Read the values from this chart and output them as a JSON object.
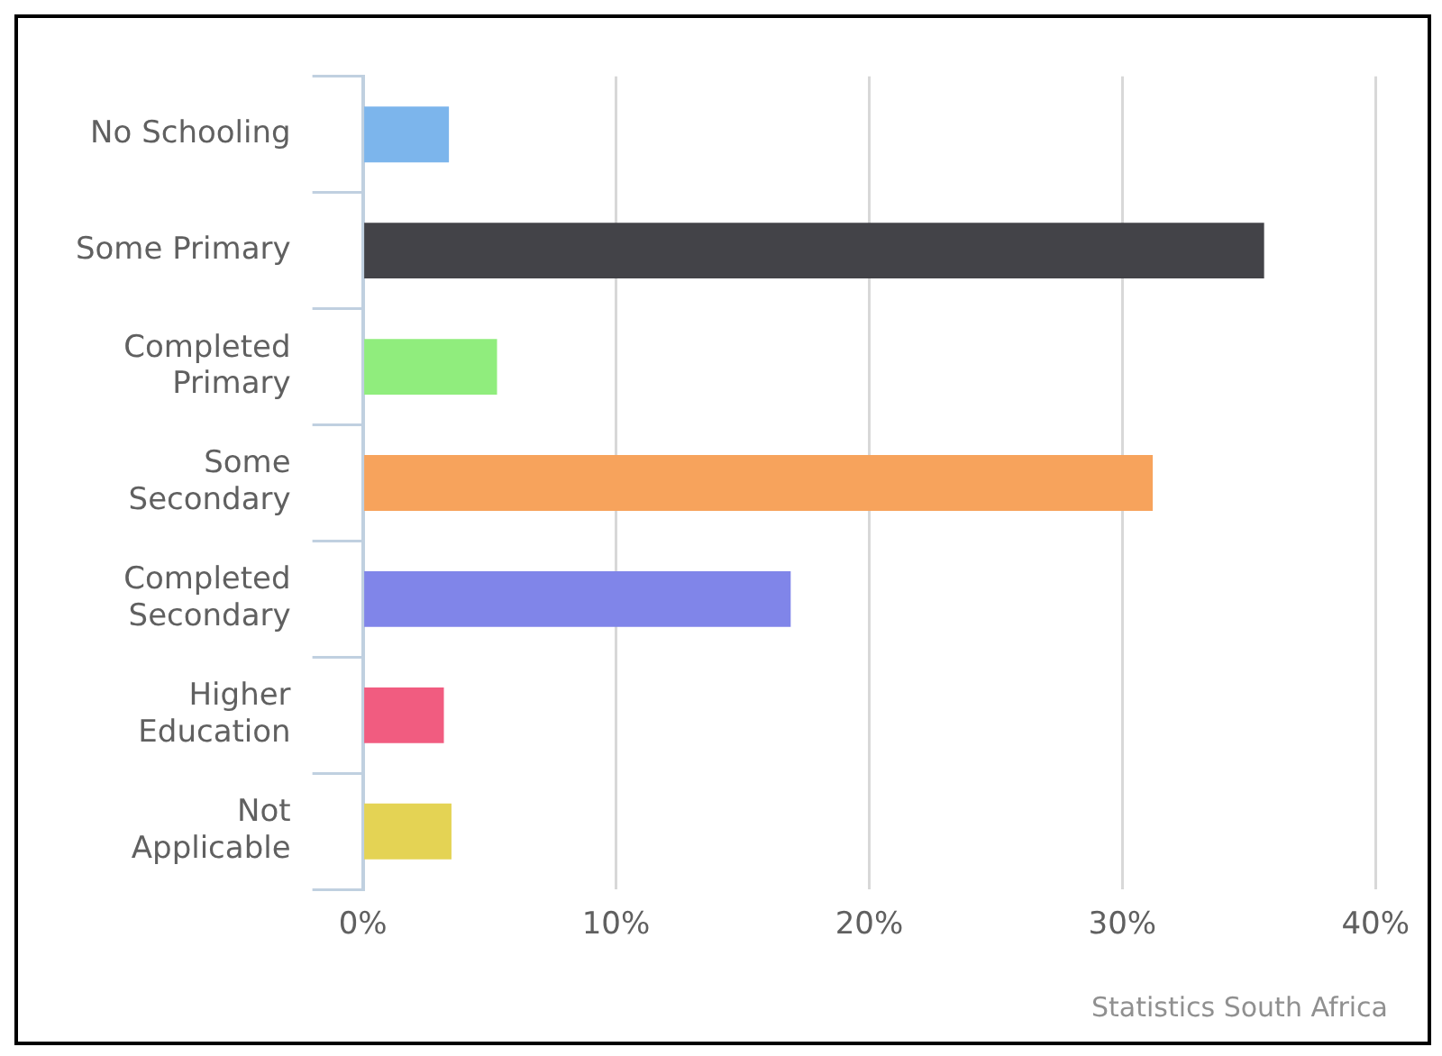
{
  "chart_data": {
    "type": "bar",
    "orientation": "horizontal",
    "categories": [
      "No Schooling",
      "Some Primary",
      "Completed Primary",
      "Some Secondary",
      "Completed Secondary",
      "Higher Education",
      "Not Applicable"
    ],
    "values": [
      3.4,
      35.6,
      5.3,
      31.2,
      16.9,
      3.2,
      3.5
    ],
    "colors": [
      "#7cb5ec",
      "#434348",
      "#90ed7d",
      "#f7a35c",
      "#8085e9",
      "#f15c80",
      "#e4d354"
    ],
    "xlim": [
      0,
      40
    ],
    "xticks": [
      {
        "value": 0,
        "label": "0%"
      },
      {
        "value": 10,
        "label": "10%"
      },
      {
        "value": 20,
        "label": "20%"
      },
      {
        "value": 30,
        "label": "30%"
      },
      {
        "value": 40,
        "label": "40%"
      }
    ],
    "grid": "x",
    "legend": false,
    "annotations": [
      "Statistics South Africa"
    ]
  }
}
